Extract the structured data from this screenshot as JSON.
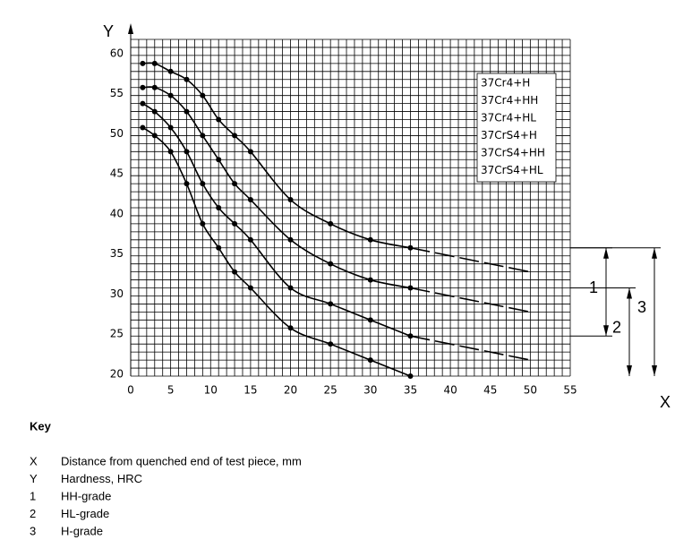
{
  "chart_data": {
    "type": "line",
    "x_label": "X",
    "y_label": "Y",
    "xlim": [
      0,
      55
    ],
    "ylim": [
      20,
      62
    ],
    "xticks": [
      0,
      5,
      10,
      15,
      20,
      25,
      30,
      35,
      40,
      45,
      50,
      55
    ],
    "yticks": [
      20,
      25,
      30,
      35,
      40,
      45,
      50,
      55,
      60
    ],
    "grid": true,
    "grid_step": 1,
    "color": "#000000",
    "x": [
      1.5,
      3,
      5,
      7,
      9,
      11,
      13,
      15,
      20,
      25,
      30,
      35
    ],
    "extension_x": [
      35,
      50
    ],
    "series": [
      {
        "values": [
          59,
          59,
          58,
          57,
          55,
          52,
          50,
          48,
          42,
          39,
          37,
          36
        ],
        "extension": [
          36,
          33
        ]
      },
      {
        "values": [
          56,
          56,
          55,
          53,
          50,
          47,
          44,
          42,
          37,
          34,
          32,
          31
        ],
        "extension": [
          31,
          28
        ]
      },
      {
        "values": [
          54,
          53,
          51,
          48,
          44,
          41,
          39,
          37,
          31,
          29,
          27,
          25
        ],
        "extension": [
          25,
          22
        ]
      },
      {
        "values": [
          51,
          50,
          48,
          44,
          39,
          36,
          33,
          31,
          26,
          24,
          22,
          20
        ]
      }
    ],
    "legend": [
      "37Cr4+H",
      "37Cr4+HH",
      "37Cr4+HL",
      "37CrS4+H",
      "37CrS4+HH",
      "37CrS4+HL"
    ],
    "bands": [
      {
        "label": "1",
        "from": 25,
        "to": 36
      },
      {
        "label": "2",
        "from": 20,
        "to": 31
      },
      {
        "label": "3",
        "from": 20,
        "to": 36
      }
    ]
  },
  "key": {
    "title": "Key",
    "items": [
      {
        "symbol": "X",
        "text": "Distance from quenched end of test piece, mm"
      },
      {
        "symbol": "Y",
        "text": "Hardness, HRC"
      },
      {
        "symbol": "1",
        "text": "HH-grade"
      },
      {
        "symbol": "2",
        "text": "HL-grade"
      },
      {
        "symbol": "3",
        "text": "H-grade"
      }
    ]
  }
}
